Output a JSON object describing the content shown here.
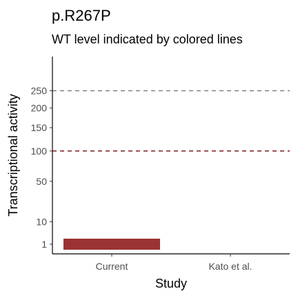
{
  "chart_data": {
    "type": "bar",
    "title": "p.R267P",
    "subtitle": "WT level indicated by colored lines",
    "xlabel": "Study",
    "ylabel": "Transcriptional activity",
    "categories": [
      "Current",
      "Kato et al."
    ],
    "values": [
      1,
      null
    ],
    "yscale": "sqrt",
    "ylim": [
      0,
      400
    ],
    "yticks": [
      1,
      10,
      50,
      100,
      150,
      200,
      250
    ],
    "reference_lines": [
      {
        "value": 100,
        "color": "#7f1d1d",
        "style": "dashed"
      },
      {
        "value": 250,
        "color": "#808080",
        "style": "dashed"
      }
    ],
    "bar_color": "#9b3333",
    "legend": "none",
    "grid": false
  }
}
